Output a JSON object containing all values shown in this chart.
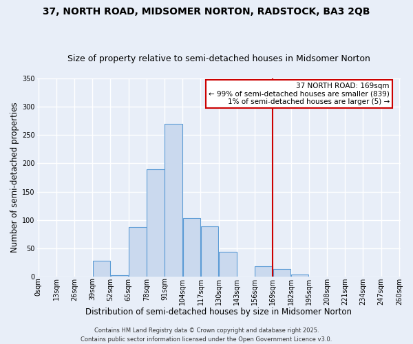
{
  "title": "37, NORTH ROAD, MIDSOMER NORTON, RADSTOCK, BA3 2QB",
  "subtitle": "Size of property relative to semi-detached houses in Midsomer Norton",
  "xlabel": "Distribution of semi-detached houses by size in Midsomer Norton",
  "ylabel": "Number of semi-detached properties",
  "bin_labels": [
    "0sqm",
    "13sqm",
    "26sqm",
    "39sqm",
    "52sqm",
    "65sqm",
    "78sqm",
    "91sqm",
    "104sqm",
    "117sqm",
    "130sqm",
    "143sqm",
    "156sqm",
    "169sqm",
    "182sqm",
    "195sqm",
    "208sqm",
    "221sqm",
    "234sqm",
    "247sqm",
    "260sqm"
  ],
  "bin_edges": [
    0,
    13,
    26,
    39,
    52,
    65,
    78,
    91,
    104,
    117,
    130,
    143,
    156,
    169,
    182,
    195,
    208,
    221,
    234,
    247,
    260
  ],
  "bar_values": [
    0,
    0,
    0,
    28,
    2,
    87,
    190,
    270,
    103,
    89,
    44,
    0,
    18,
    13,
    4,
    0,
    0,
    0,
    0,
    0
  ],
  "bar_color": "#cad9ee",
  "bar_edge_color": "#5b9bd5",
  "vline_x": 169,
  "vline_color": "#cc0000",
  "ylim": [
    0,
    350
  ],
  "yticks": [
    0,
    50,
    100,
    150,
    200,
    250,
    300,
    350
  ],
  "annotation_title": "37 NORTH ROAD: 169sqm",
  "annotation_line1": "← 99% of semi-detached houses are smaller (839)",
  "annotation_line2": "1% of semi-detached houses are larger (5) →",
  "annotation_box_color": "#ffffff",
  "annotation_box_edge_color": "#cc0000",
  "footer_line1": "Contains HM Land Registry data © Crown copyright and database right 2025.",
  "footer_line2": "Contains public sector information licensed under the Open Government Licence v3.0.",
  "background_color": "#e8eef8",
  "grid_color": "#ffffff",
  "title_fontsize": 10,
  "subtitle_fontsize": 9,
  "axis_label_fontsize": 8.5,
  "tick_fontsize": 7,
  "annotation_fontsize": 7.5,
  "footer_fontsize": 6
}
